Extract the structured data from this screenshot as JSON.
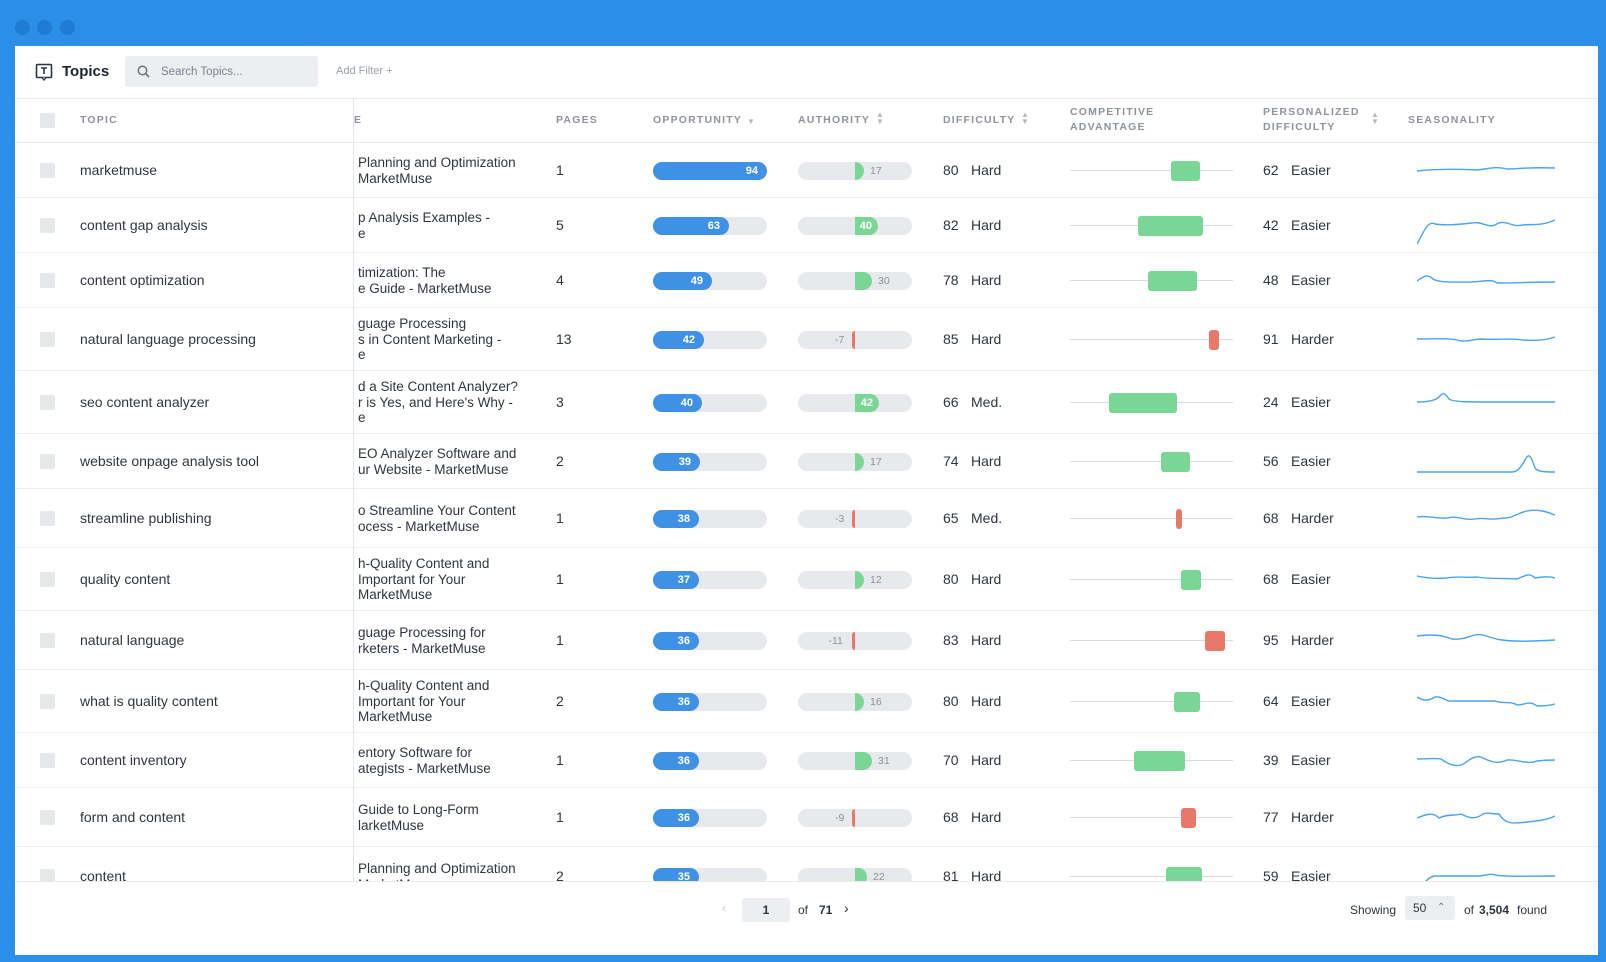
{
  "window": {
    "accent": "#2b8fe8"
  },
  "toolbar": {
    "title": "Topics",
    "title_icon": "topic-icon",
    "search_placeholder": "Search Topics...",
    "add_filter": "Add Filter +"
  },
  "columns": {
    "topic": "TOPIC",
    "title": "E",
    "pages": "PAGES",
    "opportunity": "OPPORTUNITY",
    "authority": "AUTHORITY",
    "difficulty": "DIFFICULTY",
    "competitive_advantage_1": "COMPETITIVE",
    "competitive_advantage_2": "ADVANTAGE",
    "personalized_difficulty_1": "PERSONALIZED",
    "personalized_difficulty_2": "DIFFICULTY",
    "seasonality": "SEASONALITY"
  },
  "rows": [
    {
      "topic": "marketmuse",
      "title": [
        "Planning and Optimization",
        "MarketMuse"
      ],
      "pages": "1",
      "opportunity": 94,
      "authority": 17,
      "difficulty": "80",
      "difficulty_label": "Hard",
      "ca_start": 0.62,
      "ca_end": 0.8,
      "ca_color": "#79d694",
      "pd": "62",
      "pd_label": "Easier"
    },
    {
      "topic": "content gap analysis",
      "title": [
        "p Analysis Examples -",
        "e"
      ],
      "pages": "5",
      "opportunity": 63,
      "authority": 40,
      "difficulty": "82",
      "difficulty_label": "Hard",
      "ca_start": 0.42,
      "ca_end": 0.82,
      "ca_color": "#79d694",
      "pd": "42",
      "pd_label": "Easier"
    },
    {
      "topic": "content optimization",
      "title": [
        "timization: The",
        "e Guide - MarketMuse"
      ],
      "pages": "4",
      "opportunity": 49,
      "authority": 30,
      "difficulty": "78",
      "difficulty_label": "Hard",
      "ca_start": 0.48,
      "ca_end": 0.78,
      "ca_color": "#79d694",
      "pd": "48",
      "pd_label": "Easier"
    },
    {
      "topic": "natural language processing",
      "title": [
        "guage Processing",
        "s in Content Marketing -",
        "e"
      ],
      "pages": "13",
      "opportunity": 42,
      "authority": -7,
      "difficulty": "85",
      "difficulty_label": "Hard",
      "ca_start": 0.85,
      "ca_end": 0.91,
      "ca_color": "#e8786a",
      "pd": "91",
      "pd_label": "Harder"
    },
    {
      "topic": "seo content analyzer",
      "title": [
        "d a Site Content Analyzer?",
        "r is Yes, and Here's Why -",
        "e"
      ],
      "pages": "3",
      "opportunity": 40,
      "authority": 42,
      "difficulty": "66",
      "difficulty_label": "Med.",
      "ca_start": 0.24,
      "ca_end": 0.66,
      "ca_color": "#79d694",
      "pd": "24",
      "pd_label": "Easier"
    },
    {
      "topic": "website onpage analysis tool",
      "title": [
        "EO Analyzer Software and",
        "ur Website - MarketMuse"
      ],
      "pages": "2",
      "opportunity": 39,
      "authority": 17,
      "difficulty": "74",
      "difficulty_label": "Hard",
      "ca_start": 0.56,
      "ca_end": 0.74,
      "ca_color": "#79d694",
      "pd": "56",
      "pd_label": "Easier"
    },
    {
      "topic": "streamline publishing",
      "title": [
        "o Streamline Your Content",
        "ocess - MarketMuse"
      ],
      "pages": "1",
      "opportunity": 38,
      "authority": -3,
      "difficulty": "65",
      "difficulty_label": "Med.",
      "ca_start": 0.65,
      "ca_end": 0.68,
      "ca_color": "#e8786a",
      "pd": "68",
      "pd_label": "Harder"
    },
    {
      "topic": "quality content",
      "title": [
        "h-Quality Content and",
        "Important for Your",
        "MarketMuse"
      ],
      "pages": "1",
      "opportunity": 37,
      "authority": 12,
      "difficulty": "80",
      "difficulty_label": "Hard",
      "ca_start": 0.68,
      "ca_end": 0.8,
      "ca_color": "#79d694",
      "pd": "68",
      "pd_label": "Easier"
    },
    {
      "topic": "natural language",
      "title": [
        "guage Processing for",
        "rketers - MarketMuse"
      ],
      "pages": "1",
      "opportunity": 36,
      "authority": -11,
      "difficulty": "83",
      "difficulty_label": "Hard",
      "ca_start": 0.83,
      "ca_end": 0.95,
      "ca_color": "#e8786a",
      "pd": "95",
      "pd_label": "Harder"
    },
    {
      "topic": "what is quality content",
      "title": [
        "h-Quality Content and",
        "Important for Your",
        "MarketMuse"
      ],
      "pages": "2",
      "opportunity": 36,
      "authority": 16,
      "difficulty": "80",
      "difficulty_label": "Hard",
      "ca_start": 0.64,
      "ca_end": 0.8,
      "ca_color": "#79d694",
      "pd": "64",
      "pd_label": "Easier"
    },
    {
      "topic": "content inventory",
      "title": [
        "entory Software for",
        "ategists - MarketMuse"
      ],
      "pages": "1",
      "opportunity": 36,
      "authority": 31,
      "difficulty": "70",
      "difficulty_label": "Hard",
      "ca_start": 0.39,
      "ca_end": 0.7,
      "ca_color": "#79d694",
      "pd": "39",
      "pd_label": "Easier"
    },
    {
      "topic": "form and content",
      "title": [
        "Guide to Long-Form",
        "larketMuse"
      ],
      "pages": "1",
      "opportunity": 36,
      "authority": -9,
      "difficulty": "68",
      "difficulty_label": "Hard",
      "ca_start": 0.68,
      "ca_end": 0.77,
      "ca_color": "#e8786a",
      "pd": "77",
      "pd_label": "Harder"
    },
    {
      "topic": "content",
      "title": [
        "Planning and Optimization",
        "MarketMuse"
      ],
      "pages": "2",
      "opportunity": 35,
      "authority": 22,
      "difficulty": "81",
      "difficulty_label": "Hard",
      "ca_start": 0.59,
      "ca_end": 0.81,
      "ca_color": "#79d694",
      "pd": "59",
      "pd_label": "Easier"
    }
  ],
  "pagination": {
    "current_page": "1",
    "of_label": "of",
    "total_pages": "71",
    "showing_label": "Showing",
    "page_size": "50",
    "of_label_2": "of",
    "total_found": "3,504",
    "found_label": "found"
  },
  "colors": {
    "opportunity": "#3f91e6",
    "positive": "#79d694",
    "negative": "#e8786a",
    "sparkline": "#4aa3ef"
  }
}
